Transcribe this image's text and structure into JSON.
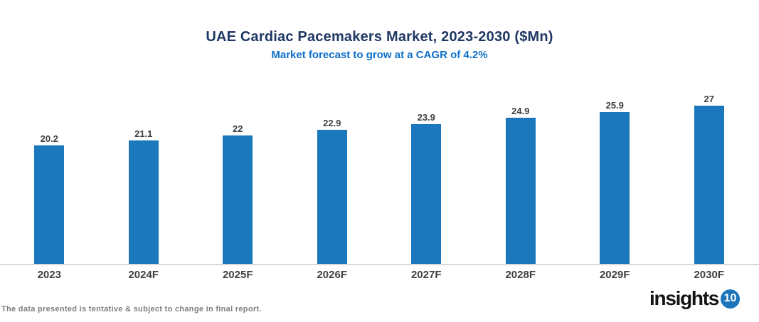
{
  "title": "UAE Cardiac Pacemakers Market, 2023-2030 ($Mn)",
  "subtitle": "Market forecast to grow at a CAGR of 4.2%",
  "footer": {
    "note": "The data presented is tentative & subject to change in final report.",
    "logo_text": "insights",
    "logo_badge": "10"
  },
  "colors": {
    "background": "#FFFFFF",
    "bar": "#1B78BC",
    "title": "#203864",
    "subtitle": "#0E6FC8",
    "data_label": "#404040",
    "axis_label": "#404040",
    "axis_line": "#D9D9D9",
    "footer_note": "#7F7F7F",
    "logo_badge_bg": "#1B75BB"
  },
  "chart_data": {
    "type": "bar",
    "title": "UAE Cardiac Pacemakers Market, 2023-2030 ($Mn)",
    "subtitle": "Market forecast to grow at a CAGR of 4.2%",
    "categories": [
      "2023",
      "2024F",
      "2025F",
      "2026F",
      "2027F",
      "2028F",
      "2029F",
      "2030F"
    ],
    "values": [
      20.2,
      21.1,
      22,
      22.9,
      23.9,
      24.9,
      25.9,
      27
    ],
    "value_labels": [
      "20.2",
      "21.1",
      "22",
      "22.9",
      "23.9",
      "24.9",
      "25.9",
      "27"
    ],
    "xlabel": "",
    "ylabel": "",
    "ylim": [
      0,
      27
    ],
    "grid": false,
    "legend": "none",
    "data_labels_position": "above bars",
    "bar_color": "#1B78BC"
  }
}
